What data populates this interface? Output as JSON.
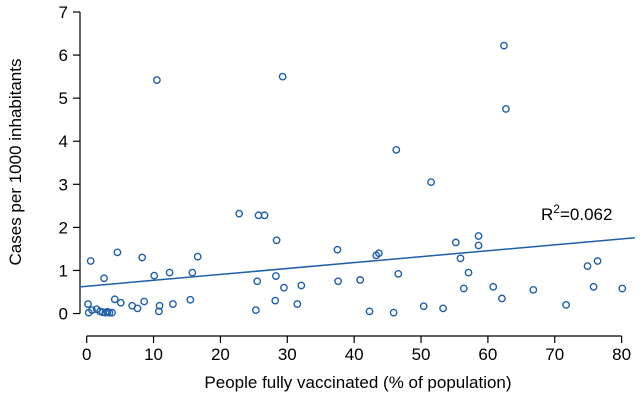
{
  "chart_data": {
    "type": "scatter",
    "xlabel": "People fully vaccinated (% of population)",
    "ylabel": "Cases per 1000 inhabitants",
    "xlim": [
      -1,
      82
    ],
    "ylim": [
      -0.15,
      7
    ],
    "xticks": [
      0,
      10,
      20,
      30,
      40,
      50,
      60,
      70,
      80
    ],
    "yticks": [
      0,
      1,
      2,
      3,
      4,
      5,
      6,
      7
    ],
    "annotation": {
      "label": "R",
      "sup": "2",
      "value": "=0.062"
    },
    "trendline": {
      "x": [
        -1,
        82
      ],
      "y": [
        0.62,
        1.76
      ]
    },
    "colors": {
      "points": "#1f5fa8",
      "trendline": "#1f5fa8"
    },
    "points": [
      [
        0.2,
        0.22
      ],
      [
        0.3,
        0.02
      ],
      [
        0.6,
        1.22
      ],
      [
        0.8,
        0.08
      ],
      [
        1.5,
        0.1
      ],
      [
        2.0,
        0.05
      ],
      [
        2.4,
        0.03
      ],
      [
        2.6,
        0.82
      ],
      [
        2.8,
        0.02
      ],
      [
        3.1,
        0.04
      ],
      [
        3.4,
        0.02
      ],
      [
        3.8,
        0.02
      ],
      [
        4.2,
        0.33
      ],
      [
        4.6,
        1.42
      ],
      [
        5.1,
        0.25
      ],
      [
        6.8,
        0.18
      ],
      [
        7.6,
        0.12
      ],
      [
        8.3,
        1.3
      ],
      [
        8.6,
        0.28
      ],
      [
        10.1,
        0.88
      ],
      [
        10.5,
        5.42
      ],
      [
        10.8,
        0.05
      ],
      [
        10.9,
        0.18
      ],
      [
        12.4,
        0.95
      ],
      [
        12.9,
        0.22
      ],
      [
        15.5,
        0.32
      ],
      [
        15.8,
        0.95
      ],
      [
        16.6,
        1.32
      ],
      [
        22.8,
        2.32
      ],
      [
        25.3,
        0.08
      ],
      [
        25.5,
        0.75
      ],
      [
        25.7,
        2.28
      ],
      [
        26.6,
        2.28
      ],
      [
        28.2,
        0.3
      ],
      [
        28.3,
        0.87
      ],
      [
        28.4,
        1.7
      ],
      [
        29.3,
        5.5
      ],
      [
        29.5,
        0.6
      ],
      [
        31.5,
        0.22
      ],
      [
        32.1,
        0.65
      ],
      [
        37.5,
        1.48
      ],
      [
        37.6,
        0.75
      ],
      [
        40.9,
        0.78
      ],
      [
        42.3,
        0.05
      ],
      [
        43.3,
        1.35
      ],
      [
        43.7,
        1.4
      ],
      [
        45.9,
        0.02
      ],
      [
        46.3,
        3.8
      ],
      [
        46.6,
        0.92
      ],
      [
        50.4,
        0.17
      ],
      [
        51.5,
        3.05
      ],
      [
        53.3,
        0.12
      ],
      [
        55.2,
        1.65
      ],
      [
        55.9,
        1.28
      ],
      [
        56.4,
        0.58
      ],
      [
        57.1,
        0.95
      ],
      [
        58.6,
        1.8
      ],
      [
        58.6,
        1.58
      ],
      [
        60.8,
        0.62
      ],
      [
        62.1,
        0.35
      ],
      [
        62.4,
        6.22
      ],
      [
        62.7,
        4.75
      ],
      [
        66.8,
        0.55
      ],
      [
        71.7,
        0.2
      ],
      [
        74.9,
        1.1
      ],
      [
        75.8,
        0.62
      ],
      [
        76.4,
        1.22
      ],
      [
        80.1,
        0.58
      ]
    ]
  }
}
